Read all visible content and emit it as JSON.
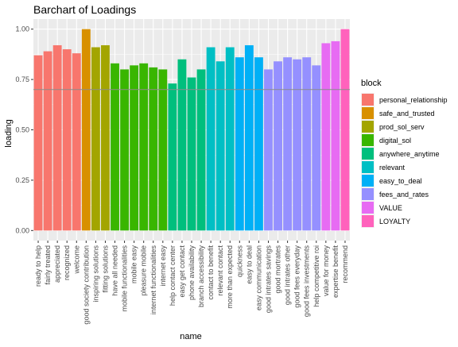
{
  "chart_data": {
    "type": "bar",
    "title": "Barchart of Loadings",
    "xlabel": "name",
    "ylabel": "loading",
    "ylim": [
      -0.05,
      1.05
    ],
    "yticks": [
      0.0,
      0.25,
      0.5,
      0.75,
      1.0
    ],
    "ytick_labels": [
      "0.00",
      "0.25",
      "0.50",
      "0.75",
      "1.00"
    ],
    "reference_line": 0.7,
    "grid": true,
    "legend": {
      "title": "block",
      "placement": "right",
      "entries": [
        {
          "label": "personal_relationship",
          "color": "#F8766D"
        },
        {
          "label": "safe_and_trusted",
          "color": "#D89000"
        },
        {
          "label": "prod_sol_serv",
          "color": "#A3A500"
        },
        {
          "label": "digital_sol",
          "color": "#39B600"
        },
        {
          "label": "anywhere_anytime",
          "color": "#00BF7D"
        },
        {
          "label": "relevant",
          "color": "#00BFC4"
        },
        {
          "label": "easy_to_deal",
          "color": "#00B0F6"
        },
        {
          "label": "fees_and_rates",
          "color": "#9590FF"
        },
        {
          "label": "VALUE",
          "color": "#E76BF3"
        },
        {
          "label": "LOYALTY",
          "color": "#FF62BC"
        }
      ]
    },
    "categories": [
      "ready to help",
      "fairly treated",
      "appreciated",
      "recognized",
      "welcome",
      "good society contribution",
      "inspiring solutions",
      "fitting solutions",
      "have all needed",
      "mobile functionalities",
      "mobile easy",
      "pleasure mobile",
      "internet functionalities",
      "internet easy",
      "help contact center",
      "easy get contact",
      "phone availability",
      "branch accessibility",
      "contact to benefit",
      "relevant contact",
      "more than expected",
      "quickness",
      "easy to deal",
      "easy communication",
      "good intrates savings",
      "good mortrates",
      "good intrates other",
      "good fees everyday",
      "good fees investments",
      "help competitive roi",
      "value for money",
      "expertise benefit",
      "recommend"
    ],
    "values": [
      0.87,
      0.89,
      0.92,
      0.9,
      0.88,
      1.0,
      0.91,
      0.92,
      0.83,
      0.8,
      0.82,
      0.83,
      0.81,
      0.8,
      0.73,
      0.85,
      0.76,
      0.8,
      0.91,
      0.84,
      0.91,
      0.86,
      0.92,
      0.86,
      0.8,
      0.84,
      0.86,
      0.85,
      0.86,
      0.82,
      0.93,
      0.94,
      1.0
    ],
    "block": [
      "personal_relationship",
      "personal_relationship",
      "personal_relationship",
      "personal_relationship",
      "personal_relationship",
      "safe_and_trusted",
      "prod_sol_serv",
      "prod_sol_serv",
      "digital_sol",
      "digital_sol",
      "digital_sol",
      "digital_sol",
      "digital_sol",
      "digital_sol",
      "anywhere_anytime",
      "anywhere_anytime",
      "anywhere_anytime",
      "anywhere_anytime",
      "relevant",
      "relevant",
      "relevant",
      "easy_to_deal",
      "easy_to_deal",
      "easy_to_deal",
      "fees_and_rates",
      "fees_and_rates",
      "fees_and_rates",
      "fees_and_rates",
      "fees_and_rates",
      "fees_and_rates",
      "VALUE",
      "VALUE",
      "LOYALTY"
    ]
  }
}
